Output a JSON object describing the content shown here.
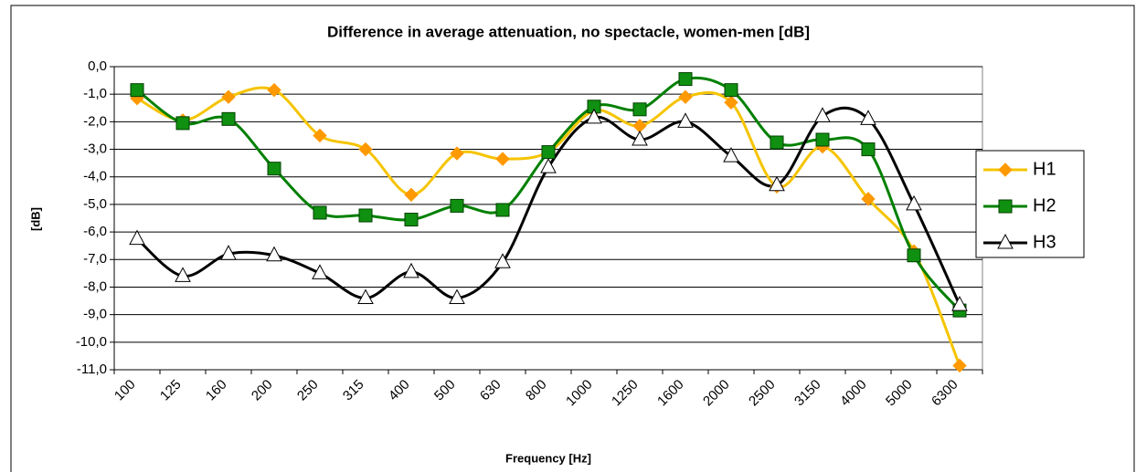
{
  "chart_data": {
    "type": "line",
    "title": "Difference in average attenuation, no spectacle, women-men [dB]",
    "x_label": "Frequency [Hz]",
    "y_label": "[dB]",
    "categories": [
      "100",
      "125",
      "160",
      "200",
      "250",
      "315",
      "400",
      "500",
      "630",
      "800",
      "1000",
      "1250",
      "1600",
      "2000",
      "2500",
      "3150",
      "4000",
      "5000",
      "6300"
    ],
    "series": [
      {
        "name": "H1",
        "color": "#f5c400",
        "marker": "diamond",
        "marker_color": "#ff9900",
        "values": [
          -1.15,
          -1.95,
          -1.1,
          -0.85,
          -2.5,
          -3.0,
          -4.65,
          -3.15,
          -3.35,
          -3.1,
          -1.6,
          -2.15,
          -1.1,
          -1.3,
          -4.35,
          -2.9,
          -4.8,
          -6.7,
          -10.85
        ]
      },
      {
        "name": "H2",
        "color": "#008000",
        "marker": "square",
        "marker_color": "#109010",
        "values": [
          -0.85,
          -2.05,
          -1.9,
          -3.7,
          -5.3,
          -5.4,
          -5.55,
          -5.05,
          -5.2,
          -3.1,
          -1.45,
          -1.55,
          -0.45,
          -0.85,
          -2.75,
          -2.65,
          -3.0,
          -6.85,
          -8.85
        ]
      },
      {
        "name": "H3",
        "color": "#000000",
        "marker": "triangle",
        "marker_color": "#ffffff",
        "values": [
          -6.25,
          -7.6,
          -6.8,
          -6.85,
          -7.5,
          -8.4,
          -7.45,
          -8.4,
          -7.1,
          -3.65,
          -1.85,
          -2.65,
          -2.0,
          -3.25,
          -4.3,
          -1.8,
          -1.9,
          -5.0,
          -8.65
        ]
      }
    ],
    "ylim": [
      -11,
      0
    ],
    "yticks": [
      {
        "value": 0,
        "label": "0,0"
      },
      {
        "value": -1,
        "label": "-1,0"
      },
      {
        "value": -2,
        "label": "-2,0"
      },
      {
        "value": -3,
        "label": "-3,0"
      },
      {
        "value": -4,
        "label": "-4,0"
      },
      {
        "value": -5,
        "label": "-5,0"
      },
      {
        "value": -6,
        "label": "-6,0"
      },
      {
        "value": -7,
        "label": "-7,0"
      },
      {
        "value": -8,
        "label": "-8,0"
      },
      {
        "value": -9,
        "label": "-9,0"
      },
      {
        "value": -10,
        "label": "-10,0"
      },
      {
        "value": -11,
        "label": "-11,0"
      }
    ],
    "grid": true,
    "legend": "right",
    "smooth": true
  }
}
